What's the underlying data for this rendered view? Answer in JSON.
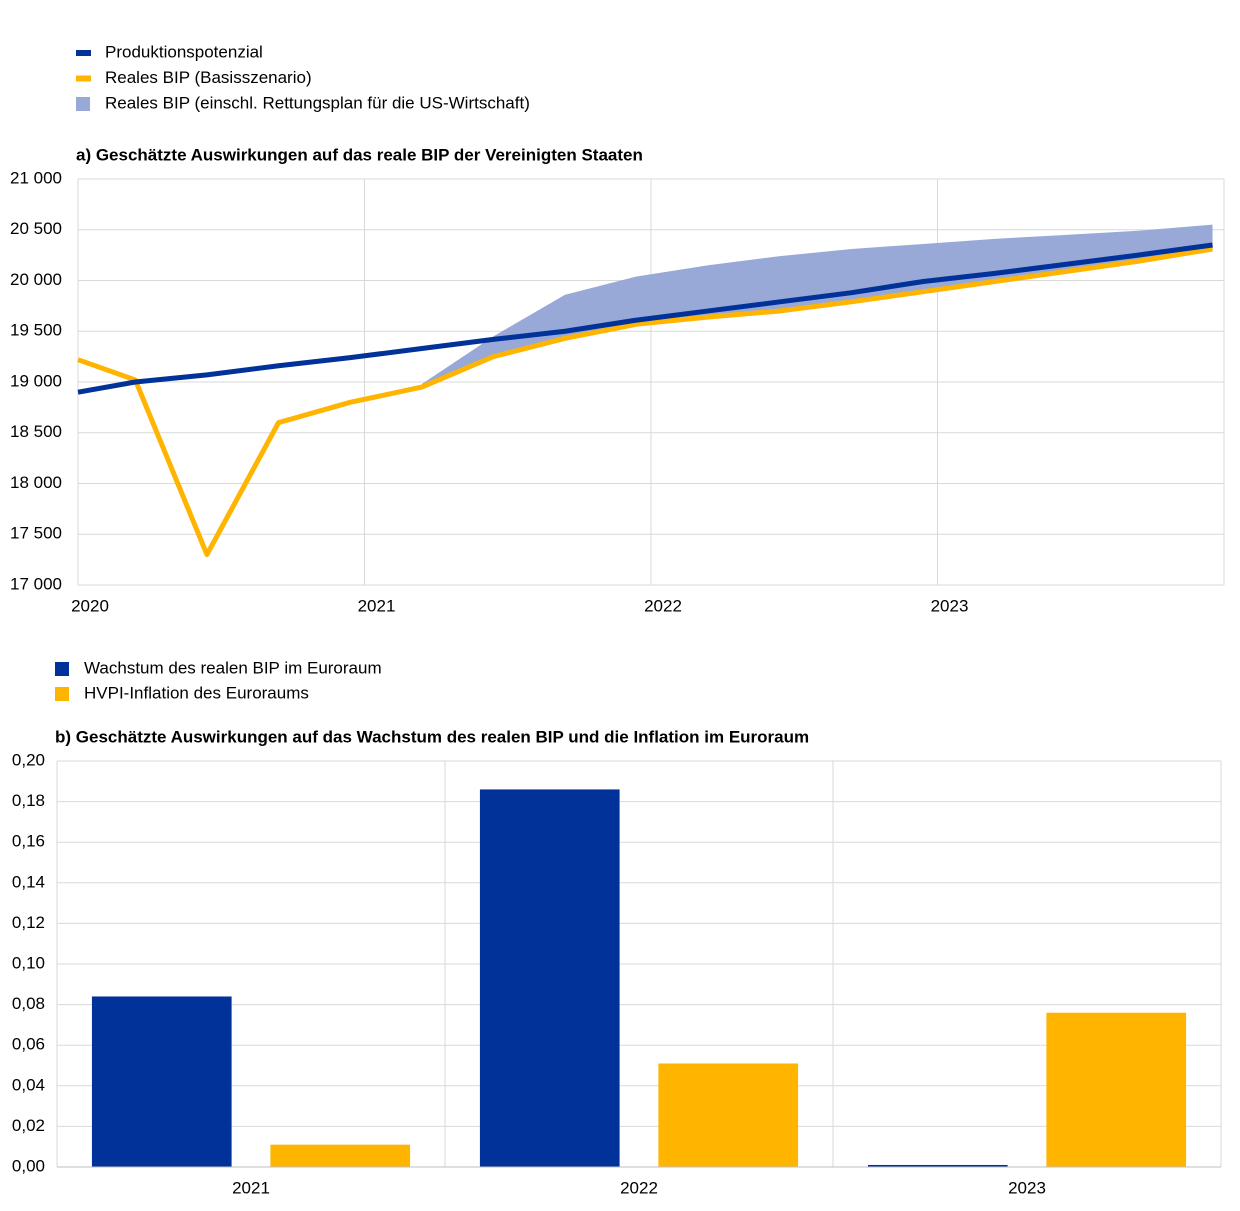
{
  "chart_data": [
    {
      "type": "line",
      "title": "a) Geschätzte Auswirkungen auf das reale BIP der Vereinigten Staaten",
      "x": [
        2020,
        2020.2,
        2020.45,
        2020.7,
        2020.95,
        2021.2,
        2021.45,
        2021.7,
        2021.95,
        2022.2,
        2022.45,
        2022.7,
        2022.95,
        2023.2,
        2023.45,
        2023.7,
        2023.96
      ],
      "xlim": [
        2020,
        2024
      ],
      "xticks": [
        2020,
        2021,
        2022,
        2023
      ],
      "ylim": [
        17000,
        21000
      ],
      "yticks": [
        {
          "value": 17000,
          "label": "17 000"
        },
        {
          "value": 17500,
          "label": "17 500"
        },
        {
          "value": 18000,
          "label": "18 000"
        },
        {
          "value": 18500,
          "label": "18 500"
        },
        {
          "value": 19000,
          "label": "19 000"
        },
        {
          "value": 19500,
          "label": "19 500"
        },
        {
          "value": 20000,
          "label": "20 000"
        },
        {
          "value": 20500,
          "label": "20 500"
        },
        {
          "value": 21000,
          "label": "21 000"
        }
      ],
      "grid": true,
      "series": [
        {
          "name": "Produktionspotenzial",
          "color": "#003299",
          "values": [
            18900,
            19000,
            19070,
            19160,
            19240,
            19330,
            19420,
            19500,
            19610,
            19700,
            19790,
            19880,
            19990,
            20070,
            20160,
            20250,
            20350
          ]
        },
        {
          "name": "Reales BIP (Basisszenario)",
          "color": "#ffb400",
          "values": [
            19220,
            19020,
            17300,
            18600,
            18800,
            18950,
            19250,
            19430,
            19570,
            19640,
            19700,
            19790,
            19890,
            19990,
            20090,
            20190,
            20310
          ]
        },
        {
          "name": "Reales BIP (einschl. Rettungsplan für die US-Wirtschaft)",
          "color": "#98a9d7",
          "style": "band",
          "values": [
            null,
            null,
            null,
            null,
            null,
            18980,
            19450,
            19860,
            20040,
            20150,
            20240,
            20310,
            20360,
            20410,
            20450,
            20490,
            20550
          ]
        }
      ]
    },
    {
      "type": "bar",
      "title": "b) Geschätzte Auswirkungen auf das Wachstum des realen BIP und die Inflation im Euroraum",
      "categories": [
        "2021",
        "2022",
        "2023"
      ],
      "ylim": [
        0,
        0.2
      ],
      "yticks": [
        {
          "value": 0,
          "label": "0,00"
        },
        {
          "value": 0.02,
          "label": "0,02"
        },
        {
          "value": 0.04,
          "label": "0,04"
        },
        {
          "value": 0.06,
          "label": "0,06"
        },
        {
          "value": 0.08,
          "label": "0,08"
        },
        {
          "value": 0.1,
          "label": "0,10"
        },
        {
          "value": 0.12,
          "label": "0,12"
        },
        {
          "value": 0.14,
          "label": "0,14"
        },
        {
          "value": 0.16,
          "label": "0,16"
        },
        {
          "value": 0.18,
          "label": "0,18"
        },
        {
          "value": 0.2,
          "label": "0,20"
        }
      ],
      "grid": true,
      "series": [
        {
          "name": "Wachstum des realen BIP im Euroraum",
          "color": "#003299",
          "values": [
            0.084,
            0.186,
            0.001
          ]
        },
        {
          "name": "HVPI-Inflation des Euroraums",
          "color": "#ffb400",
          "values": [
            0.011,
            0.051,
            0.076
          ]
        }
      ]
    }
  ]
}
